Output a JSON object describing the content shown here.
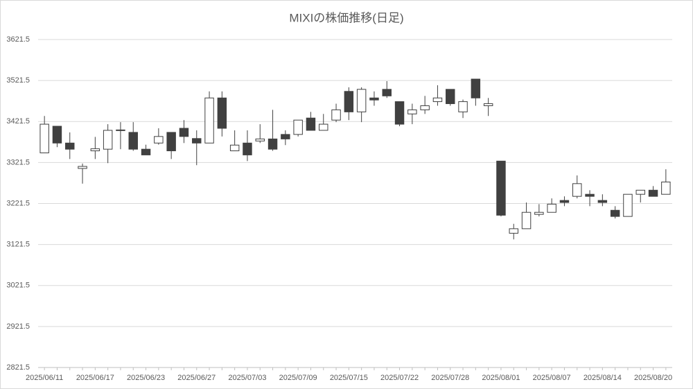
{
  "chart_data": {
    "type": "candlestick",
    "title": "MIXIの株価推移(日足)",
    "categories": [
      "2025/06/11",
      null,
      null,
      null,
      "2025/06/17",
      null,
      null,
      null,
      "2025/06/23",
      null,
      null,
      null,
      "2025/06/27",
      null,
      null,
      null,
      "2025/07/03",
      null,
      null,
      null,
      "2025/07/09",
      null,
      null,
      null,
      "2025/07/15",
      null,
      null,
      null,
      "2025/07/22",
      null,
      null,
      null,
      "2025/07/28",
      null,
      null,
      null,
      "2025/08/01",
      null,
      null,
      null,
      "2025/08/07",
      null,
      null,
      null,
      "2025/08/14",
      null,
      null,
      null,
      "2025/08/20",
      null
    ],
    "open": [
      3345,
      3410,
      3369,
      3307,
      3350,
      3354,
      3401,
      3395,
      3354,
      3369,
      3395,
      3405,
      3380,
      3369,
      3479,
      3350,
      3369,
      3374,
      3379,
      3390,
      3390,
      3430,
      3400,
      3425,
      3495,
      3445,
      3479,
      3500,
      3470,
      3440,
      3450,
      3470,
      3500,
      3445,
      3525,
      3460,
      3325,
      3149,
      3160,
      3195,
      3200,
      3229,
      3239,
      3244,
      3229,
      3205,
      3190,
      3244,
      3254,
      3244
    ],
    "high": [
      3435,
      3410,
      3395,
      3319,
      3384,
      3415,
      3420,
      3420,
      3365,
      3405,
      3395,
      3425,
      3400,
      3495,
      3495,
      3400,
      3400,
      3415,
      3450,
      3400,
      3425,
      3445,
      3440,
      3465,
      3505,
      3505,
      3495,
      3520,
      3470,
      3465,
      3484,
      3510,
      3500,
      3475,
      3525,
      3479,
      3325,
      3172,
      3224,
      3220,
      3234,
      3239,
      3290,
      3254,
      3244,
      3215,
      3244,
      3254,
      3264,
      3305
    ],
    "low": [
      3345,
      3359,
      3330,
      3270,
      3330,
      3320,
      3354,
      3350,
      3340,
      3365,
      3330,
      3369,
      3315,
      3369,
      3385,
      3350,
      3325,
      3369,
      3350,
      3364,
      3385,
      3400,
      3400,
      3420,
      3425,
      3420,
      3460,
      3479,
      3410,
      3415,
      3440,
      3460,
      3460,
      3430,
      3460,
      3435,
      3190,
      3134,
      3160,
      3190,
      3200,
      3215,
      3234,
      3215,
      3215,
      3185,
      3190,
      3224,
      3239,
      3244
    ],
    "close": [
      3415,
      3369,
      3354,
      3312,
      3355,
      3400,
      3400,
      3354,
      3340,
      3385,
      3350,
      3385,
      3369,
      3479,
      3405,
      3364,
      3340,
      3379,
      3354,
      3379,
      3425,
      3400,
      3415,
      3450,
      3445,
      3500,
      3474,
      3484,
      3415,
      3450,
      3460,
      3479,
      3465,
      3470,
      3479,
      3465,
      3193,
      3160,
      3200,
      3200,
      3220,
      3224,
      3270,
      3239,
      3224,
      3190,
      3244,
      3254,
      3239,
      3274
    ],
    "up_color": "#ffffff",
    "down_color": "#404040",
    "outline_color": "#404040",
    "ylim": [
      2821.5,
      3621.5
    ],
    "yticks": [
      2821.5,
      2921.5,
      3021.5,
      3121.5,
      3221.5,
      3321.5,
      3421.5,
      3521.5,
      3621.5
    ],
    "grid": true
  }
}
